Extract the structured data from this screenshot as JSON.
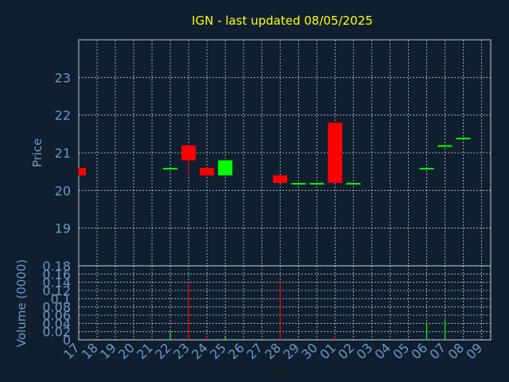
{
  "chart_data": [
    {
      "type": "candlestick",
      "title": "IGN - last updated 08/05/2025",
      "ylabel": "Price",
      "ylim": [
        18,
        24
      ],
      "yticks": [
        19,
        20,
        21,
        22,
        23
      ],
      "grid": true,
      "colors": {
        "up": "#00ff00",
        "down": "#ff0000",
        "title": "#ffff00",
        "axis_text": "#6f97c2",
        "grid": "#ffffff"
      },
      "x_labels": [
        "17",
        "18",
        "19",
        "20",
        "21",
        "22",
        "23",
        "24",
        "25",
        "26",
        "27",
        "28",
        "29",
        "30",
        "01",
        "02",
        "03",
        "04",
        "05",
        "06",
        "07",
        "08",
        "09"
      ],
      "candles": [
        {
          "day": "17",
          "open": 20.6,
          "high": 20.6,
          "low": 20.4,
          "close": 20.4
        },
        {
          "day": "22",
          "open": 20.6,
          "high": 20.6,
          "low": 20.6,
          "close": 20.6
        },
        {
          "day": "23",
          "open": 21.2,
          "high": 21.2,
          "low": 20.4,
          "close": 20.8
        },
        {
          "day": "24",
          "open": 20.6,
          "high": 20.6,
          "low": 20.4,
          "close": 20.4
        },
        {
          "day": "25",
          "open": 20.4,
          "high": 20.8,
          "low": 20.4,
          "close": 20.8
        },
        {
          "day": "28",
          "open": 20.4,
          "high": 20.4,
          "low": 20.2,
          "close": 20.2
        },
        {
          "day": "29",
          "open": 20.2,
          "high": 20.2,
          "low": 20.2,
          "close": 20.2
        },
        {
          "day": "30",
          "open": 20.2,
          "high": 20.2,
          "low": 20.2,
          "close": 20.2
        },
        {
          "day": "01",
          "open": 21.8,
          "high": 21.8,
          "low": 20.2,
          "close": 20.2
        },
        {
          "day": "02",
          "open": 20.2,
          "high": 20.2,
          "low": 20.2,
          "close": 20.2
        },
        {
          "day": "06",
          "open": 20.6,
          "high": 20.6,
          "low": 20.6,
          "close": 20.6
        },
        {
          "day": "07",
          "open": 21.2,
          "high": 21.2,
          "low": 21.2,
          "close": 21.2
        },
        {
          "day": "08",
          "open": 21.4,
          "high": 21.4,
          "low": 21.4,
          "close": 21.4
        }
      ]
    },
    {
      "type": "bar",
      "ylabel": "Volume (0000)",
      "xlabel": "Day",
      "ylim": [
        0,
        0.18
      ],
      "yticks": [
        "0",
        "0.02",
        "0.04",
        "0.06",
        "0.08",
        "0.1",
        "0.12",
        "0.14",
        "0.16",
        "0.18"
      ],
      "categories": [
        "22",
        "23",
        "24",
        "25",
        "28",
        "01",
        "06",
        "07"
      ],
      "values": [
        0.02,
        0.14,
        0.01,
        0.01,
        0.14,
        0.01,
        0.04,
        0.05
      ],
      "bar_colors": [
        "#00ff00",
        "#ff0000",
        "#ff0000",
        "#00ff00",
        "#ff0000",
        "#ff0000",
        "#00ff00",
        "#00ff00"
      ]
    }
  ]
}
